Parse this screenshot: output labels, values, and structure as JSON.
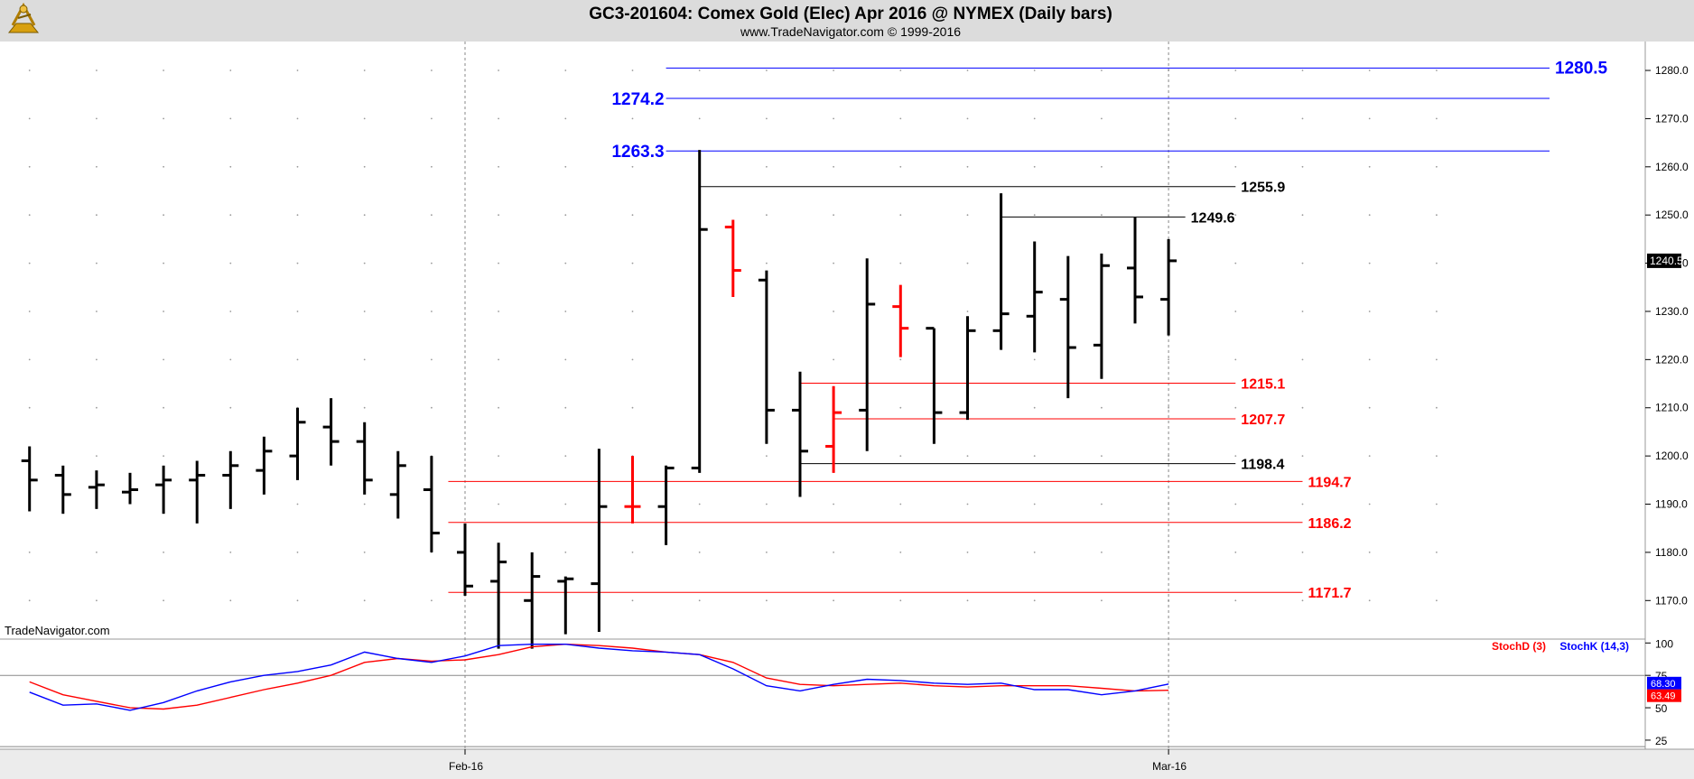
{
  "header": {
    "title": "GC3-201604:  Comex Gold (Elec) Apr 2016 @ NYMEX  (Daily bars)",
    "subtitle": "www.TradeNavigator.com © 1999-2016",
    "logo_icon": "sextant-logo-icon"
  },
  "watermark": "TradeNavigator.com",
  "colors": {
    "header_bg": "#dcdcdc",
    "bar_up": "#000000",
    "bar_down": "#ff0000",
    "resistance": "#0000ff",
    "support": "#ff0000",
    "neutral_level": "#000000",
    "stoch_d": "#ff0000",
    "stoch_k": "#0000ff",
    "last_price_marker": "#000000"
  },
  "chart_data": [
    {
      "type": "ohlc",
      "panel": "price",
      "y_axis": {
        "range": [
          1162,
          1286
        ],
        "ticks": [
          1170.0,
          1180.0,
          1190.0,
          1200.0,
          1210.0,
          1220.0,
          1230.0,
          1240.0,
          1250.0,
          1260.0,
          1270.0,
          1280.0
        ],
        "tick_labels": [
          "1170.0",
          "1180.0",
          "1190.0",
          "1200.0",
          "1210.0",
          "1220.0",
          "1230.0",
          "1240.0",
          "1250.0",
          "1260.0",
          "1270.0",
          "1280.0"
        ]
      },
      "x_axis": {
        "labels": [
          {
            "text": "Feb-16",
            "bar": 0
          },
          {
            "text": "Mar-16",
            "bar": 21
          }
        ]
      },
      "last_price": {
        "value": 1240.5,
        "label": "1240.5"
      },
      "bars": [
        {
          "d": -13,
          "o": 1199.0,
          "h": 1202.0,
          "l": 1188.5,
          "c": 1195.0
        },
        {
          "d": -12,
          "o": 1196.0,
          "h": 1198.0,
          "l": 1188.0,
          "c": 1192.0
        },
        {
          "d": -11,
          "o": 1193.5,
          "h": 1197.0,
          "l": 1189.0,
          "c": 1194.0
        },
        {
          "d": -10,
          "o": 1192.5,
          "h": 1196.5,
          "l": 1190.0,
          "c": 1193.0
        },
        {
          "d": -9,
          "o": 1194.0,
          "h": 1198.0,
          "l": 1188.0,
          "c": 1195.0
        },
        {
          "d": -8,
          "o": 1195.0,
          "h": 1199.0,
          "l": 1186.0,
          "c": 1196.0
        },
        {
          "d": -7,
          "o": 1196.0,
          "h": 1201.0,
          "l": 1189.0,
          "c": 1198.0
        },
        {
          "d": -6,
          "o": 1197.0,
          "h": 1204.0,
          "l": 1192.0,
          "c": 1201.0
        },
        {
          "d": -5,
          "o": 1200.0,
          "h": 1210.0,
          "l": 1195.0,
          "c": 1207.0
        },
        {
          "d": -4,
          "o": 1206.0,
          "h": 1212.0,
          "l": 1198.0,
          "c": 1203.0
        },
        {
          "d": -3,
          "o": 1203.0,
          "h": 1207.0,
          "l": 1192.0,
          "c": 1195.0
        },
        {
          "d": -2,
          "o": 1192.0,
          "h": 1201.0,
          "l": 1187.0,
          "c": 1198.0
        },
        {
          "d": -1,
          "o": 1193.0,
          "h": 1200.0,
          "l": 1180.0,
          "c": 1184.0
        },
        {
          "d": 0,
          "o": 1180.0,
          "h": 1186.0,
          "l": 1171.0,
          "c": 1173.0
        },
        {
          "d": 1,
          "o": 1174.0,
          "h": 1182.0,
          "l": 1160.0,
          "c": 1178.0
        },
        {
          "d": 2,
          "o": 1170.0,
          "h": 1180.0,
          "l": 1160.0,
          "c": 1175.0
        },
        {
          "d": 3,
          "o": 1174.0,
          "h": 1175.0,
          "l": 1163.0,
          "c": 1174.5
        },
        {
          "d": 4,
          "o": 1173.5,
          "h": 1201.5,
          "l": 1163.5,
          "c": 1189.5
        },
        {
          "d": 5,
          "o": 1189.5,
          "h": 1200.0,
          "l": 1186.0,
          "c": 1189.5
        },
        {
          "d": 6,
          "o": 1189.5,
          "h": 1198.0,
          "l": 1181.5,
          "c": 1197.5
        },
        {
          "d": 7,
          "o": 1197.5,
          "h": 1263.5,
          "l": 1196.5,
          "c": 1247.0
        },
        {
          "d": 8,
          "o": 1247.5,
          "h": 1249.0,
          "l": 1233.0,
          "c": 1238.5
        },
        {
          "d": 9,
          "o": 1236.5,
          "h": 1238.5,
          "l": 1202.5,
          "c": 1209.5
        },
        {
          "d": 10,
          "o": 1209.5,
          "h": 1217.5,
          "l": 1191.5,
          "c": 1201.0
        },
        {
          "d": 11,
          "o": 1202.0,
          "h": 1214.5,
          "l": 1196.5,
          "c": 1209.0
        },
        {
          "d": 12,
          "o": 1209.5,
          "h": 1241.0,
          "l": 1201.0,
          "c": 1231.5
        },
        {
          "d": 13,
          "o": 1231.0,
          "h": 1235.5,
          "l": 1220.5,
          "c": 1226.5
        },
        {
          "d": 14,
          "o": 1226.5,
          "h": 1226.5,
          "l": 1202.5,
          "c": 1209.0
        },
        {
          "d": 15,
          "o": 1209.0,
          "h": 1229.0,
          "l": 1207.5,
          "c": 1226.0
        },
        {
          "d": 16,
          "o": 1226.0,
          "h": 1254.5,
          "l": 1222.0,
          "c": 1229.5
        },
        {
          "d": 17,
          "o": 1229.0,
          "h": 1244.5,
          "l": 1221.5,
          "c": 1234.0
        },
        {
          "d": 18,
          "o": 1232.5,
          "h": 1241.5,
          "l": 1212.0,
          "c": 1222.5
        },
        {
          "d": 19,
          "o": 1223.0,
          "h": 1242.0,
          "l": 1216.0,
          "c": 1239.5
        },
        {
          "d": 20,
          "o": 1239.0,
          "h": 1249.5,
          "l": 1227.5,
          "c": 1233.0
        },
        {
          "d": 21,
          "o": 1232.5,
          "h": 1245.0,
          "l": 1225.0,
          "c": 1240.5
        }
      ],
      "bar_colors": {
        "8": "down",
        "11": "down",
        "13": "down",
        "5": "down"
      },
      "levels": [
        {
          "value": 1280.5,
          "label": "1280.5",
          "kind": "resistance",
          "from_bar": 6,
          "label_side": "right"
        },
        {
          "value": 1274.2,
          "label": "1274.2",
          "kind": "resistance",
          "from_bar": 6,
          "label_side": "left"
        },
        {
          "value": 1263.3,
          "label": "1263.3",
          "kind": "resistance",
          "from_bar": 6,
          "label_side": "left"
        },
        {
          "value": 1255.9,
          "label": "1255.9",
          "kind": "neutral_level",
          "from_bar": 7,
          "to_bar": 23,
          "label_side": "right"
        },
        {
          "value": 1249.6,
          "label": "1249.6",
          "kind": "neutral_level",
          "from_bar": 16,
          "to_bar": 21.5,
          "label_side": "right"
        },
        {
          "value": 1215.1,
          "label": "1215.1",
          "kind": "support",
          "from_bar": 10,
          "to_bar": 23,
          "label_side": "right"
        },
        {
          "value": 1207.7,
          "label": "1207.7",
          "kind": "support",
          "from_bar": 11,
          "to_bar": 23,
          "label_side": "right"
        },
        {
          "value": 1198.4,
          "label": "1198.4",
          "kind": "neutral_level",
          "from_bar": 10,
          "to_bar": 23,
          "label_side": "right"
        },
        {
          "value": 1194.7,
          "label": "1194.7",
          "kind": "support",
          "from_bar": -0.5,
          "to_bar": 25,
          "label_side": "right"
        },
        {
          "value": 1186.2,
          "label": "1186.2",
          "kind": "support",
          "from_bar": -0.5,
          "to_bar": 25,
          "label_side": "right"
        },
        {
          "value": 1171.7,
          "label": "1171.7",
          "kind": "support",
          "from_bar": -0.5,
          "to_bar": 25,
          "label_side": "right"
        }
      ]
    },
    {
      "type": "line",
      "panel": "stochastic",
      "y_axis": {
        "range": [
          18,
          103
        ],
        "ticks": [
          25,
          50,
          75,
          100
        ],
        "tick_labels": [
          "25",
          "50",
          "75",
          "100"
        ]
      },
      "reference_lines": [
        75,
        20
      ],
      "legend": [
        {
          "name": "StochD (3)",
          "color": "#ff0000"
        },
        {
          "name": "StochK (14,3)",
          "color": "#0000ff"
        }
      ],
      "last_values": {
        "k_label": "68.30",
        "d_label": "63.49"
      },
      "series": [
        {
          "name": "StochD (3)",
          "points": [
            [
              -13,
              70
            ],
            [
              -12,
              60
            ],
            [
              -11,
              55
            ],
            [
              -10,
              50
            ],
            [
              -9,
              49
            ],
            [
              -8,
              52
            ],
            [
              -7,
              58
            ],
            [
              -6,
              64
            ],
            [
              -5,
              69
            ],
            [
              -4,
              75
            ],
            [
              -3,
              85
            ],
            [
              -2,
              88
            ],
            [
              -1,
              86
            ],
            [
              0,
              87
            ],
            [
              1,
              91
            ],
            [
              2,
              97
            ],
            [
              3,
              99
            ],
            [
              4,
              98
            ],
            [
              5,
              96
            ],
            [
              6,
              93
            ],
            [
              7,
              91
            ],
            [
              8,
              85
            ],
            [
              9,
              73
            ],
            [
              10,
              68
            ],
            [
              11,
              67
            ],
            [
              12,
              68
            ],
            [
              13,
              69
            ],
            [
              14,
              67
            ],
            [
              15,
              66
            ],
            [
              16,
              67
            ],
            [
              17,
              67
            ],
            [
              18,
              67
            ],
            [
              19,
              65
            ],
            [
              20,
              63
            ],
            [
              21,
              63.5
            ]
          ]
        },
        {
          "name": "StochK (14,3)",
          "points": [
            [
              -13,
              62
            ],
            [
              -12,
              52
            ],
            [
              -11,
              53
            ],
            [
              -10,
              48
            ],
            [
              -9,
              54
            ],
            [
              -8,
              63
            ],
            [
              -7,
              70
            ],
            [
              -6,
              75
            ],
            [
              -5,
              78
            ],
            [
              -4,
              83
            ],
            [
              -3,
              93
            ],
            [
              -2,
              88
            ],
            [
              -1,
              85
            ],
            [
              0,
              90
            ],
            [
              1,
              98
            ],
            [
              2,
              99
            ],
            [
              3,
              99
            ],
            [
              4,
              96
            ],
            [
              5,
              94
            ],
            [
              6,
              93
            ],
            [
              7,
              91
            ],
            [
              8,
              80
            ],
            [
              9,
              67
            ],
            [
              10,
              63
            ],
            [
              11,
              68
            ],
            [
              12,
              72
            ],
            [
              13,
              71
            ],
            [
              14,
              69
            ],
            [
              15,
              68
            ],
            [
              16,
              69
            ],
            [
              17,
              64
            ],
            [
              18,
              64
            ],
            [
              19,
              60
            ],
            [
              20,
              63
            ],
            [
              21,
              68.3
            ]
          ]
        }
      ]
    }
  ]
}
